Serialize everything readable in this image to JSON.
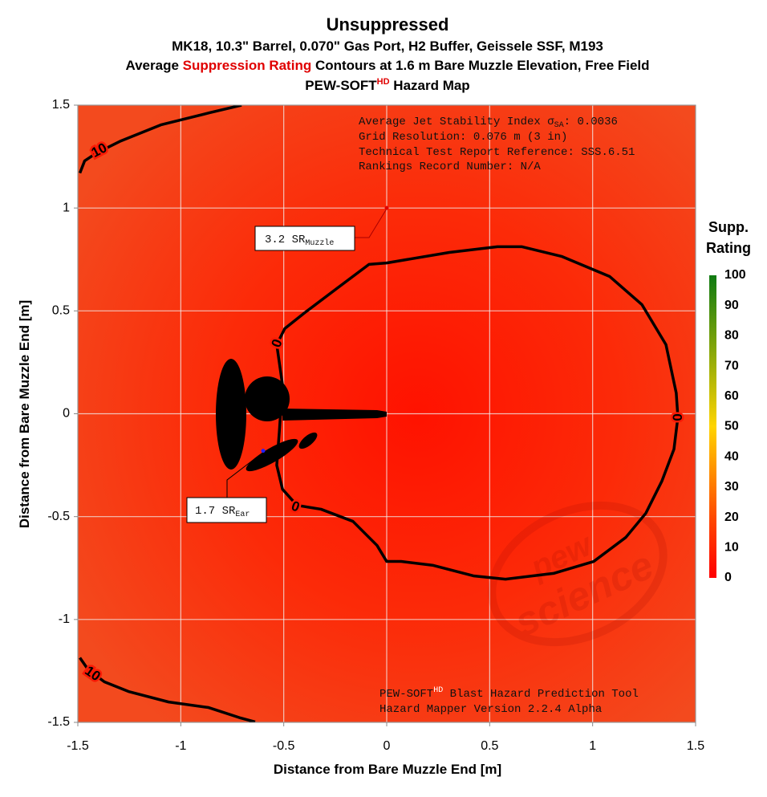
{
  "chart_data": {
    "type": "contour",
    "title": "Unsuppressed",
    "subtitle": "MK18, 10.3\" Barrel, 0.070\" Gas Port, H2 Buffer, Geissele SSF, M193",
    "subtitle2": [
      "Average ",
      "Suppression Rating",
      " Contours at 1.6 m Bare Muzzle Elevation, Free Field"
    ],
    "subtitle3": [
      "PEW-SOFT",
      "HD",
      " Hazard Map"
    ],
    "xlabel": "Distance from Bare Muzzle End [m]",
    "ylabel": "Distance from Bare Muzzle End [m]",
    "xlim": [
      -1.5,
      1.5
    ],
    "ylim": [
      -1.5,
      1.5
    ],
    "xticks": [
      -1.5,
      -1,
      -0.5,
      0,
      0.5,
      1,
      1.5
    ],
    "yticks": [
      -1.5,
      -1,
      -0.5,
      0,
      0.5,
      1,
      1.5
    ],
    "grid": true,
    "contours": [
      {
        "level": 0,
        "x": [
          0,
          0.304,
          0.538,
          0.655,
          0.849,
          1.083,
          1.239,
          1.356,
          1.406,
          1.414,
          1.395,
          1.336,
          1.258,
          1.161,
          1.005,
          0.81,
          0.577,
          0.421,
          0.226,
          0.07,
          0,
          -0.047,
          -0.164,
          -0.319,
          -0.436,
          -0.506,
          -0.534,
          -0.522,
          -0.506,
          -0.534,
          -0.495,
          -0.397,
          -0.242,
          -0.086
        ],
        "y": [
          0.733,
          0.784,
          0.812,
          0.812,
          0.765,
          0.667,
          0.531,
          0.336,
          0.101,
          -0.016,
          -0.172,
          -0.328,
          -0.484,
          -0.601,
          -0.718,
          -0.776,
          -0.804,
          -0.788,
          -0.737,
          -0.718,
          -0.718,
          -0.64,
          -0.523,
          -0.464,
          -0.445,
          -0.367,
          -0.25,
          -0.094,
          0.14,
          0.336,
          0.414,
          0.492,
          0.609,
          0.726
        ]
      },
      {
        "level": 10,
        "x": [
          -1.49,
          -1.467,
          -1.408,
          -1.291,
          -1.097,
          -0.86,
          -0.705
        ],
        "y": [
          1.17,
          1.229,
          1.268,
          1.326,
          1.404,
          1.463,
          1.5
        ]
      },
      {
        "level": 10,
        "x": [
          -1.49,
          -1.449,
          -1.371,
          -1.254,
          -1.059,
          -0.865,
          -0.709,
          -0.639
        ],
        "y": [
          -1.186,
          -1.245,
          -1.303,
          -1.35,
          -1.401,
          -1.428,
          -1.479,
          -1.498
        ]
      }
    ],
    "points": [
      {
        "x": 0,
        "y": 1,
        "label": "3.2 SR",
        "sub": "Muzzle",
        "color": "#e00000"
      },
      {
        "x": -0.6,
        "y": -0.18,
        "label": "1.7 SR",
        "sub": "Ear",
        "color": "#2020ff"
      }
    ],
    "info": [
      [
        "Average Jet Stability Index σ",
        "SA",
        ": 0.0036"
      ],
      [
        "Grid Resolution: 0.076 m (3 in)"
      ],
      [
        "Technical Test Report Reference: SSS.6.51"
      ],
      [
        "Rankings Record Number: N/A"
      ]
    ],
    "footer": [
      [
        "PEW-SOFT",
        "HD",
        " Blast Hazard Prediction Tool"
      ],
      [
        "Hazard Mapper Version 2.2.4 Alpha"
      ]
    ],
    "watermark": [
      "pew",
      "science"
    ],
    "colorbar_title": [
      "Supp.",
      "Rating"
    ],
    "colorbar_lim": [
      0,
      100
    ],
    "colorbar_ticks": [
      0,
      10,
      20,
      30,
      40,
      50,
      60,
      70,
      80,
      90,
      100
    ],
    "colorscale": [
      {
        "value": 0,
        "color": "#ff0000"
      },
      {
        "value": 20,
        "color": "#ff4a00"
      },
      {
        "value": 50,
        "color": "#ffd400"
      },
      {
        "value": 100,
        "color": "#0f7a12"
      }
    ]
  }
}
